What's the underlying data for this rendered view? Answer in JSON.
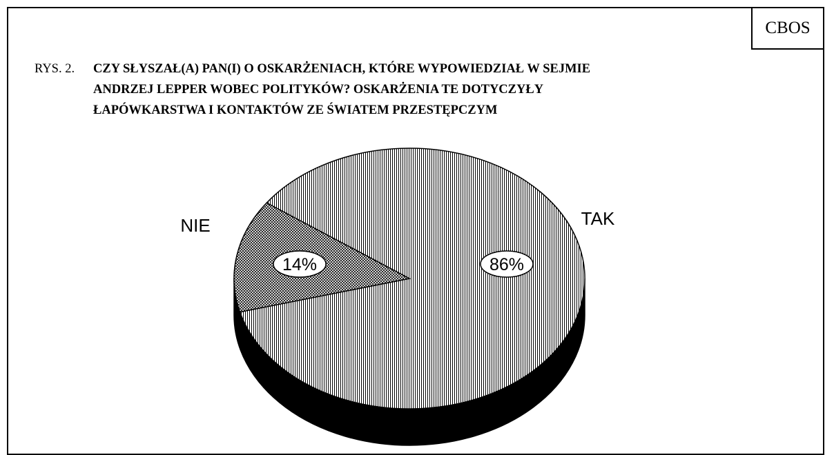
{
  "badge": {
    "label": "CBOS"
  },
  "figure": {
    "prefix": "RYS. 2.",
    "title_lines": [
      "CZY SŁYSZAŁ(A) PAN(I) O OSKARŻENIACH, KTÓRE WYPOWIEDZIAŁ W SEJMIE",
      "ANDRZEJ LEPPER WOBEC POLITYKÓW? OSKARŻENIA TE DOTYCZYŁY",
      "ŁAPÓWKARSTWA I KONTAKTÓW ZE ŚWIATEM PRZESTĘPCZYM"
    ]
  },
  "chart_data": {
    "type": "pie",
    "title": "CZY SŁYSZAŁ(A) PAN(I) O OSKARŻENIACH, KTÓRE WYPOWIEDZIAŁ W SEJMIE ANDRZEJ LEPPER WOBEC POLITYKÓW? OSKARŻENIA TE DOTYCZYŁY ŁAPÓWKARSTWA I KONTAKTÓW ZE ŚWIATEM PRZESTĘPCZYM",
    "slices": [
      {
        "label": "TAK",
        "value": 86,
        "value_label": "86%"
      },
      {
        "label": "NIE",
        "value": 14,
        "value_label": "14%"
      }
    ],
    "style": "3d-pie",
    "legend": "none"
  }
}
